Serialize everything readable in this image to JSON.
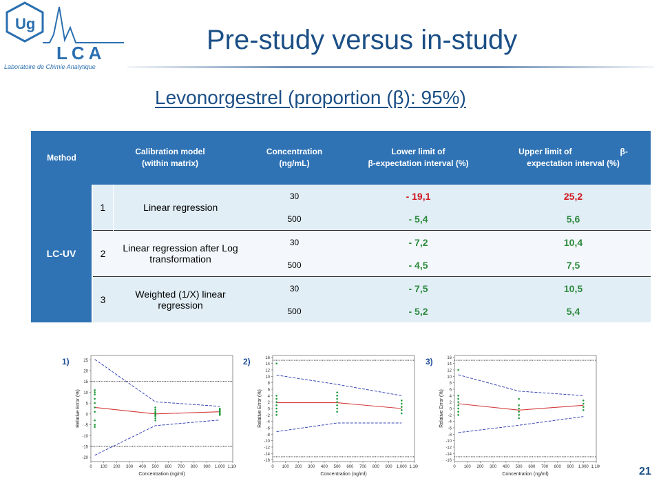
{
  "slide": {
    "title": "Pre-study versus in-study",
    "subtitle": "Levonorgestrel  (proportion  (β): 95%)",
    "page_number": "21",
    "logo": {
      "top_text": "Ug",
      "main_text": "LCA",
      "caption": "Laboratoire de Chimie Analytique"
    }
  },
  "table": {
    "headers": {
      "method": "Method",
      "calibration": "Calibration model\n(within matrix)",
      "concentration": "Concentration\n(ng/mL)",
      "lower": "Lower limit of\nβ-expectation interval (%)",
      "upper": "Upper limit of                     β-\nexpectation interval (%)"
    },
    "method": "LC-UV",
    "rows": [
      {
        "index": "1",
        "model": "Linear regression",
        "conc": [
          "30",
          "500"
        ],
        "lower": [
          "- 19,1",
          "- 5,4"
        ],
        "upper": [
          "25,2",
          "5,6"
        ]
      },
      {
        "index": "2",
        "model": "Linear regression after Log transformation",
        "conc": [
          "30",
          "500"
        ],
        "lower": [
          "- 7,2",
          "- 4,5"
        ],
        "upper": [
          "10,4",
          "7,5"
        ]
      },
      {
        "index": "3",
        "model": "Weighted (1/X) linear regression",
        "conc": [
          "30",
          "500"
        ],
        "lower": [
          "- 7,5",
          "- 5,2"
        ],
        "upper": [
          "10,5",
          "5,4"
        ]
      }
    ],
    "colors": {
      "header": "#2f73b5",
      "red": "#d0161e",
      "green": "#2d8a3e",
      "row_light": "#e1eef6"
    }
  },
  "chart_data": [
    {
      "type": "line",
      "label": "1)",
      "xlabel": "Concentration (ng/ml)",
      "ylabel": "Relative Error (%)",
      "xlim": [
        0,
        1100
      ],
      "ylim": [
        -22,
        27
      ],
      "xticks": [
        "0",
        "100",
        "200",
        "300",
        "400",
        "500",
        "600",
        "700",
        "800",
        "900",
        "1,000",
        "1,100"
      ],
      "yticks": [
        "25",
        "20",
        "15",
        "10",
        "5",
        "0",
        "-5",
        "-10",
        "-15",
        "-20"
      ],
      "series": [
        {
          "style": "bias",
          "x": [
            30,
            500,
            1000
          ],
          "y": [
            3,
            0,
            1
          ]
        },
        {
          "style": "tolerance",
          "x": [
            30,
            500,
            1000
          ],
          "y": [
            25.2,
            5.6,
            3.5
          ]
        },
        {
          "style": "tolerance",
          "x": [
            30,
            500,
            1000
          ],
          "y": [
            -19.1,
            -5.4,
            -2.8
          ]
        },
        {
          "style": "acceptance",
          "x": [
            0,
            1100
          ],
          "y": [
            15,
            15
          ]
        },
        {
          "style": "acceptance",
          "x": [
            0,
            1100
          ],
          "y": [
            -15,
            -15
          ]
        }
      ],
      "points": [
        {
          "x": 30,
          "y": [
            11,
            10,
            9,
            7,
            5,
            3,
            1,
            -3,
            -5,
            -6
          ]
        },
        {
          "x": 500,
          "y": [
            3,
            2,
            1,
            0.5,
            0,
            -0.5,
            -1,
            -2,
            -3
          ]
        },
        {
          "x": 1000,
          "y": [
            2.5,
            2,
            1.5,
            1,
            0.5,
            0,
            -0.5
          ]
        }
      ]
    },
    {
      "type": "line",
      "label": "2)",
      "xlabel": "Concentration (ng/ml)",
      "ylabel": "Relative Error (%)",
      "xlim": [
        0,
        1100
      ],
      "ylim": [
        -16.5,
        16.5
      ],
      "xticks": [
        "0",
        "100",
        "200",
        "300",
        "400",
        "500",
        "600",
        "700",
        "800",
        "900",
        "1,000",
        "1,100"
      ],
      "yticks": [
        "16",
        "14",
        "12",
        "10",
        "8",
        "6",
        "4",
        "2",
        "0",
        "-2",
        "-4",
        "-6",
        "-8",
        "-10",
        "-12",
        "-14",
        "-16"
      ],
      "series": [
        {
          "style": "bias",
          "x": [
            30,
            500,
            1000
          ],
          "y": [
            1.8,
            1.8,
            0
          ]
        },
        {
          "style": "tolerance",
          "x": [
            30,
            500,
            1000
          ],
          "y": [
            10.4,
            7.5,
            4
          ]
        },
        {
          "style": "tolerance",
          "x": [
            30,
            500,
            1000
          ],
          "y": [
            -7.2,
            -4.5,
            -4.5
          ]
        },
        {
          "style": "acceptance",
          "x": [
            0,
            1100
          ],
          "y": [
            15,
            15
          ]
        },
        {
          "style": "acceptance",
          "x": [
            0,
            1100
          ],
          "y": [
            -15,
            -15
          ]
        }
      ],
      "points": [
        {
          "x": 30,
          "y": [
            14,
            4,
            3,
            2,
            1,
            0,
            -1,
            -2
          ]
        },
        {
          "x": 500,
          "y": [
            5,
            4,
            3,
            2,
            1,
            0,
            -1
          ]
        },
        {
          "x": 1000,
          "y": [
            2.5,
            1.5,
            0.5,
            -0.5,
            -1.5
          ]
        }
      ]
    },
    {
      "type": "line",
      "label": "3)",
      "xlabel": "Concentration (ng/ml)",
      "ylabel": "Relative Error (%)",
      "xlim": [
        0,
        1100
      ],
      "ylim": [
        -16.5,
        16.5
      ],
      "xticks": [
        "0",
        "100",
        "200",
        "300",
        "400",
        "500",
        "600",
        "700",
        "800",
        "900",
        "1,000",
        "1,100"
      ],
      "yticks": [
        "16",
        "14",
        "12",
        "10",
        "8",
        "6",
        "4",
        "2",
        "0",
        "-2",
        "-4",
        "-6",
        "-8",
        "-10",
        "-12",
        "-14",
        "-16"
      ],
      "series": [
        {
          "style": "bias",
          "x": [
            30,
            500,
            1000
          ],
          "y": [
            1.5,
            -0.5,
            1
          ]
        },
        {
          "style": "tolerance",
          "x": [
            30,
            500,
            1000
          ],
          "y": [
            10.5,
            5.4,
            4
          ]
        },
        {
          "style": "tolerance",
          "x": [
            30,
            500,
            1000
          ],
          "y": [
            -7.5,
            -5.2,
            -2.5
          ]
        },
        {
          "style": "acceptance",
          "x": [
            0,
            1100
          ],
          "y": [
            15,
            15
          ]
        },
        {
          "style": "acceptance",
          "x": [
            0,
            1100
          ],
          "y": [
            -15,
            -15
          ]
        }
      ],
      "points": [
        {
          "x": 30,
          "y": [
            12,
            4,
            3,
            2,
            1,
            0,
            -1,
            -2
          ]
        },
        {
          "x": 500,
          "y": [
            3,
            1,
            0,
            -1,
            -2,
            -3
          ]
        },
        {
          "x": 1000,
          "y": [
            2.5,
            1.5,
            0.5,
            -0.5
          ]
        }
      ]
    }
  ]
}
